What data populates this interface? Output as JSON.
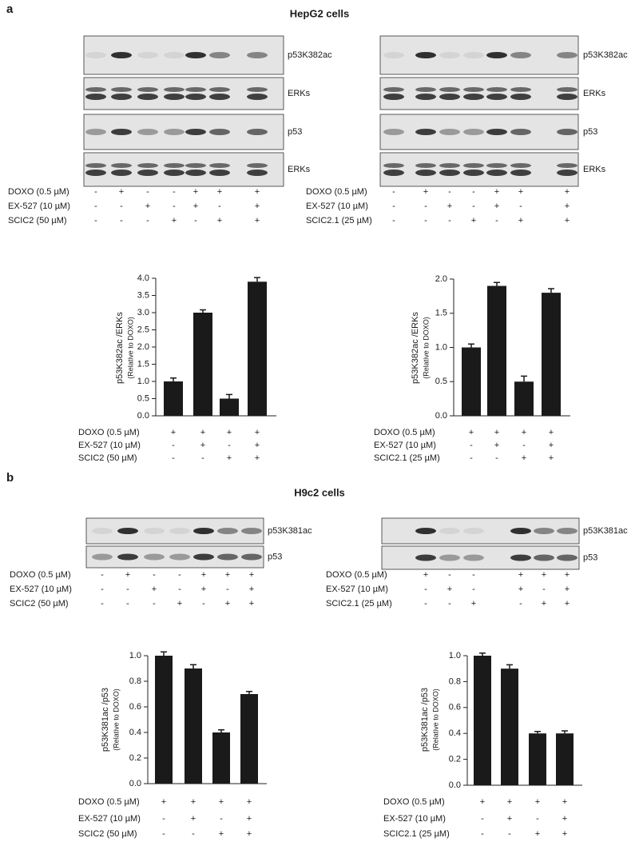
{
  "panels": [
    {
      "letter": "a",
      "title": "HepG2 cells",
      "blots": [
        {
          "bands": [
            "p53K382ac",
            "ERKs",
            "p53",
            "ERKs"
          ],
          "conditions": [
            {
              "name": "DOXO (0.5 µM)",
              "signs": [
                "-",
                "+",
                "-",
                "-",
                "+",
                "+",
                "+"
              ]
            },
            {
              "name": "EX-527 (10 µM)",
              "signs": [
                "-",
                "-",
                "+",
                "-",
                "+",
                "-",
                "+"
              ]
            },
            {
              "name": "SCIC2 (50 µM)",
              "signs": [
                "-",
                "-",
                "-",
                "+",
                "-",
                "+",
                "+"
              ]
            }
          ]
        },
        {
          "bands": [
            "p53K382ac",
            "ERKs",
            "p53",
            "ERKs"
          ],
          "conditions": [
            {
              "name": "DOXO (0.5 µM)",
              "signs": [
                "-",
                "+",
                "-",
                "-",
                "+",
                "+",
                "+"
              ]
            },
            {
              "name": "EX-527 (10 µM)",
              "signs": [
                "-",
                "-",
                "+",
                "-",
                "+",
                "-",
                "+"
              ]
            },
            {
              "name": "SCIC2.1 (25 µM)",
              "signs": [
                "-",
                "-",
                "-",
                "+",
                "-",
                "+",
                "+"
              ]
            }
          ]
        }
      ]
    },
    {
      "letter": "b",
      "title": "H9c2 cells",
      "blots": [
        {
          "bands": [
            "p53K381ac",
            "p53"
          ],
          "conditions": [
            {
              "name": "DOXO (0.5 µM)",
              "signs": [
                "-",
                "+",
                "-",
                "-",
                "+",
                "+",
                "+"
              ]
            },
            {
              "name": "EX-527 (10 µM)",
              "signs": [
                "-",
                "-",
                "+",
                "-",
                "+",
                "-",
                "+"
              ]
            },
            {
              "name": "SCIC2 (50 µM)",
              "signs": [
                "-",
                "-",
                "-",
                "+",
                "-",
                "+",
                "+"
              ]
            }
          ]
        },
        {
          "bands": [
            "p53K381ac",
            "p53"
          ],
          "conditions": [
            {
              "name": "DOXO (0.5 µM)",
              "signs": [
                "+",
                "-",
                "-",
                "+",
                "+",
                "+"
              ]
            },
            {
              "name": "EX-527 (10 µM)",
              "signs": [
                "-",
                "+",
                "-",
                "+",
                "-",
                "+"
              ]
            },
            {
              "name": "SCIC2.1 (25 µM)",
              "signs": [
                "-",
                "-",
                "+",
                "-",
                "+",
                "+"
              ]
            }
          ]
        }
      ]
    }
  ],
  "chart_data": [
    {
      "type": "bar",
      "ylabel": "p53K382ac /ERKs",
      "ylabel_note": "(Relative to DOXO)",
      "values": [
        1.0,
        3.0,
        0.5,
        3.9
      ],
      "errors": [
        0.1,
        0.08,
        0.12,
        0.12
      ],
      "color": "#1a1a1a",
      "ylim": [
        0,
        4
      ],
      "yticks": [
        {
          "value": 0,
          "label": "0.0"
        },
        0.5,
        {
          "value": 1,
          "label": "1.0"
        },
        1.5,
        {
          "value": 2,
          "label": "2.0"
        },
        2.5,
        {
          "value": 3,
          "label": "3.0"
        },
        3.5,
        {
          "value": 4,
          "label": "4.0"
        }
      ],
      "conditions": [
        {
          "name": "DOXO (0.5 µM)",
          "signs": [
            "+",
            "+",
            "+",
            "+"
          ]
        },
        {
          "name": "EX-527 (10 µM)",
          "signs": [
            "-",
            "+",
            "-",
            "+"
          ]
        },
        {
          "name": "SCIC2 (50 µM)",
          "signs": [
            "-",
            "-",
            "+",
            "+"
          ]
        }
      ]
    },
    {
      "type": "bar",
      "ylabel": "p53K382ac /ERKs",
      "ylabel_note": "(Relative to DOXO)",
      "values": [
        1.0,
        1.9,
        0.5,
        1.8
      ],
      "errors": [
        0.05,
        0.05,
        0.08,
        0.06
      ],
      "color": "#1a1a1a",
      "ylim": [
        0,
        2
      ],
      "yticks": [
        {
          "value": 0,
          "label": "0.0"
        },
        0.5,
        {
          "value": 1,
          "label": "1.0"
        },
        1.5,
        {
          "value": 2,
          "label": "2.0"
        }
      ],
      "conditions": [
        {
          "name": "DOXO (0.5 µM)",
          "signs": [
            "+",
            "+",
            "+",
            "+"
          ]
        },
        {
          "name": "EX-527 (10 µM)",
          "signs": [
            "-",
            "+",
            "-",
            "+"
          ]
        },
        {
          "name": "SCIC2.1 (25 µM)",
          "signs": [
            "-",
            "-",
            "+",
            "+"
          ]
        }
      ]
    },
    {
      "type": "bar",
      "ylabel": "p53K381ac /p53",
      "ylabel_note": "(Relative to DOXO)",
      "values": [
        1.0,
        0.9,
        0.4,
        0.7
      ],
      "errors": [
        0.03,
        0.03,
        0.02,
        0.02
      ],
      "color": "#1a1a1a",
      "ylim": [
        0,
        1
      ],
      "yticks": [
        {
          "value": 0,
          "label": "0.0"
        },
        0.2,
        0.4,
        0.6,
        0.8,
        {
          "value": 1,
          "label": "1.0"
        }
      ],
      "conditions": [
        {
          "name": "DOXO (0.5 µM)",
          "signs": [
            "+",
            "+",
            "+",
            "+"
          ]
        },
        {
          "name": "EX-527 (10 µM)",
          "signs": [
            "-",
            "+",
            "-",
            "+"
          ]
        },
        {
          "name": "SCIC2 (50 µM)",
          "signs": [
            "-",
            "-",
            "+",
            "+"
          ]
        }
      ]
    },
    {
      "type": "bar",
      "ylabel": "p53K381ac /p53",
      "ylabel_note": "(Relative to DOXO)",
      "values": [
        1.0,
        0.9,
        0.4,
        0.4
      ],
      "errors": [
        0.02,
        0.03,
        0.015,
        0.02
      ],
      "color": "#1a1a1a",
      "ylim": [
        0,
        1
      ],
      "yticks": [
        {
          "value": 0,
          "label": "0.0"
        },
        0.2,
        0.4,
        0.6,
        0.8,
        {
          "value": 1,
          "label": "1.0"
        }
      ],
      "conditions": [
        {
          "name": "DOXO (0.5 µM)",
          "signs": [
            "+",
            "+",
            "+",
            "+"
          ]
        },
        {
          "name": "EX-527 (10 µM)",
          "signs": [
            "-",
            "+",
            "-",
            "+"
          ]
        },
        {
          "name": "SCIC2.1 (25 µM)",
          "signs": [
            "-",
            "-",
            "+",
            "+"
          ]
        }
      ]
    }
  ]
}
